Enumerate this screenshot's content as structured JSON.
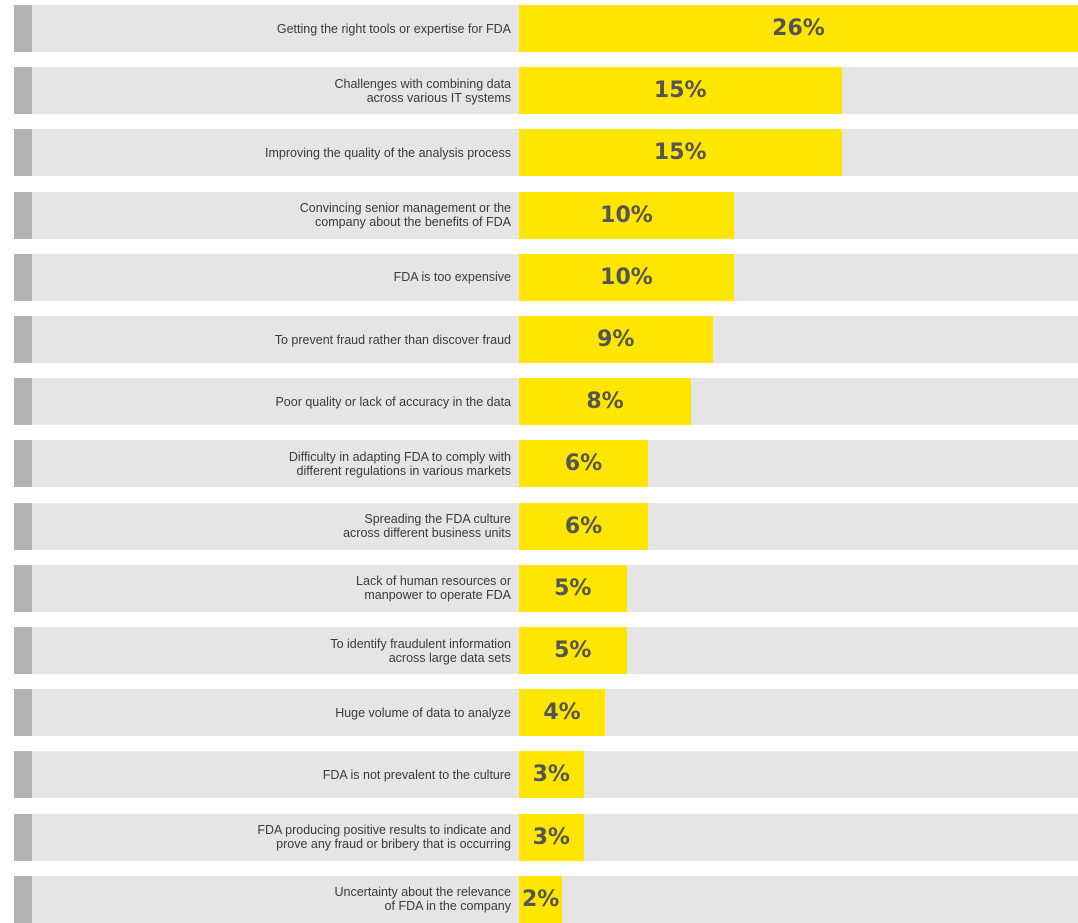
{
  "chart_data": {
    "type": "bar",
    "orientation": "horizontal",
    "unit": "%",
    "xlim": [
      0,
      26
    ],
    "colors": {
      "bar": "#ffe600",
      "row_background": "#e5e5e5",
      "row_marker": "#b3b3b3",
      "label_text": "#3a3a3a",
      "value_text": "#555555"
    },
    "categories": [
      "Getting the right tools or expertise for FDA",
      "Challenges with combining data\nacross various IT systems",
      "Improving the quality of the analysis process",
      "Convincing senior management or the\ncompany about the benefits of FDA",
      "FDA is too expensive",
      "To prevent fraud rather than discover fraud",
      "Poor quality or lack of accuracy in the data",
      "Difficulty in adapting FDA to comply with\ndifferent regulations in various markets",
      "Spreading the FDA culture\nacross different business units",
      "Lack of human resources or\nmanpower to operate FDA",
      "To identify fraudulent information\nacross large data sets",
      "Huge volume of data to analyze",
      "FDA is not prevalent to the culture",
      "FDA producing positive results to indicate and\nprove any fraud or bribery that is occurring",
      "Uncertainty about the relevance\nof FDA in the company"
    ],
    "values": [
      26,
      15,
      15,
      10,
      10,
      9,
      8,
      6,
      6,
      5,
      5,
      4,
      3,
      3,
      2
    ],
    "value_labels": [
      "26%",
      "15%",
      "15%",
      "10%",
      "10%",
      "9%",
      "8%",
      "6%",
      "6%",
      "5%",
      "5%",
      "4%",
      "3%",
      "3%",
      "2%"
    ]
  }
}
